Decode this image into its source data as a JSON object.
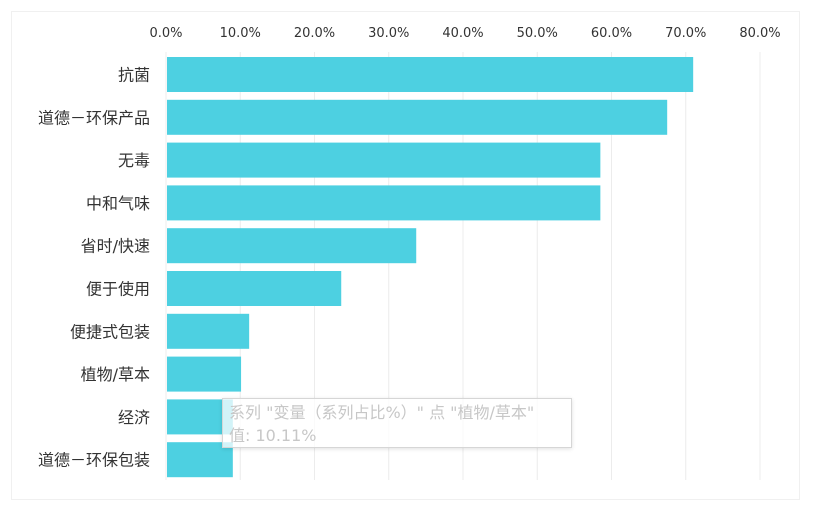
{
  "chart_data": {
    "type": "bar",
    "orientation": "horizontal",
    "categories": [
      "抗菌",
      "道德－环保产品",
      "无毒",
      "中和气味",
      "省时/快速",
      "便于使用",
      "便捷式包装",
      "植物/草本",
      "经济",
      "道德－环保包装"
    ],
    "values": [
      0.71,
      0.675,
      0.585,
      0.585,
      0.337,
      0.236,
      0.112,
      0.1011,
      0.09,
      0.09
    ],
    "xlim": [
      0,
      0.8
    ],
    "xticks": [
      0,
      0.1,
      0.2,
      0.3,
      0.4,
      0.5,
      0.6,
      0.7,
      0.8
    ],
    "xtick_labels": [
      "0.0%",
      "10.0%",
      "20.0%",
      "30.0%",
      "40.0%",
      "50.0%",
      "60.0%",
      "70.0%",
      "80.0%"
    ],
    "axis_position": "top",
    "grid": true,
    "bar_color": "#4dd0e1",
    "title": "",
    "xlabel": "",
    "ylabel": ""
  },
  "tooltip": {
    "line1": "系列 \"变量（系列占比%）\" 点 \"植物/草本\"",
    "line2": "值: 10.11%"
  }
}
